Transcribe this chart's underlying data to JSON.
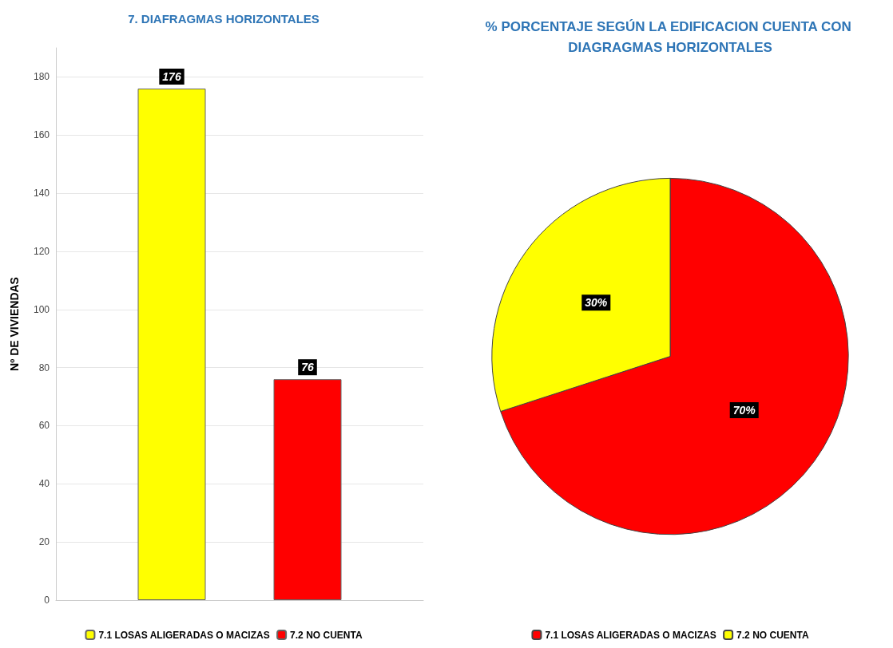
{
  "chart_data": [
    {
      "type": "bar",
      "title": "7. DIAFRAGMAS HORIZONTALES",
      "ylabel": "Nº DE VIVIENDAS",
      "categories": [
        null
      ],
      "series": [
        {
          "name": "7.1 LOSAS ALIGERADAS O MACIZAS",
          "color": "#ffff00",
          "values": [
            176
          ]
        },
        {
          "name": "7.2 NO CUENTA",
          "color": "#ff0000",
          "values": [
            76
          ]
        }
      ],
      "ylim": [
        0,
        190
      ],
      "yticks": [
        0,
        20,
        40,
        60,
        80,
        100,
        120,
        140,
        160,
        180
      ],
      "grid": "y",
      "legend": "bottom",
      "data_labels": true
    },
    {
      "type": "pie",
      "title": "% PORCENTAJE SEGÚN LA EDIFICACION CUENTA CON DIAGRAGMAS HORIZONTALES",
      "categories": [
        "7.1 LOSAS ALIGERADAS O MACIZAS",
        "7.2 NO CUENTA"
      ],
      "values": [
        70,
        30
      ],
      "colors": [
        "#ff0000",
        "#ffff00"
      ],
      "value_labels": [
        "70%",
        "30%"
      ],
      "legend": "bottom"
    }
  ]
}
